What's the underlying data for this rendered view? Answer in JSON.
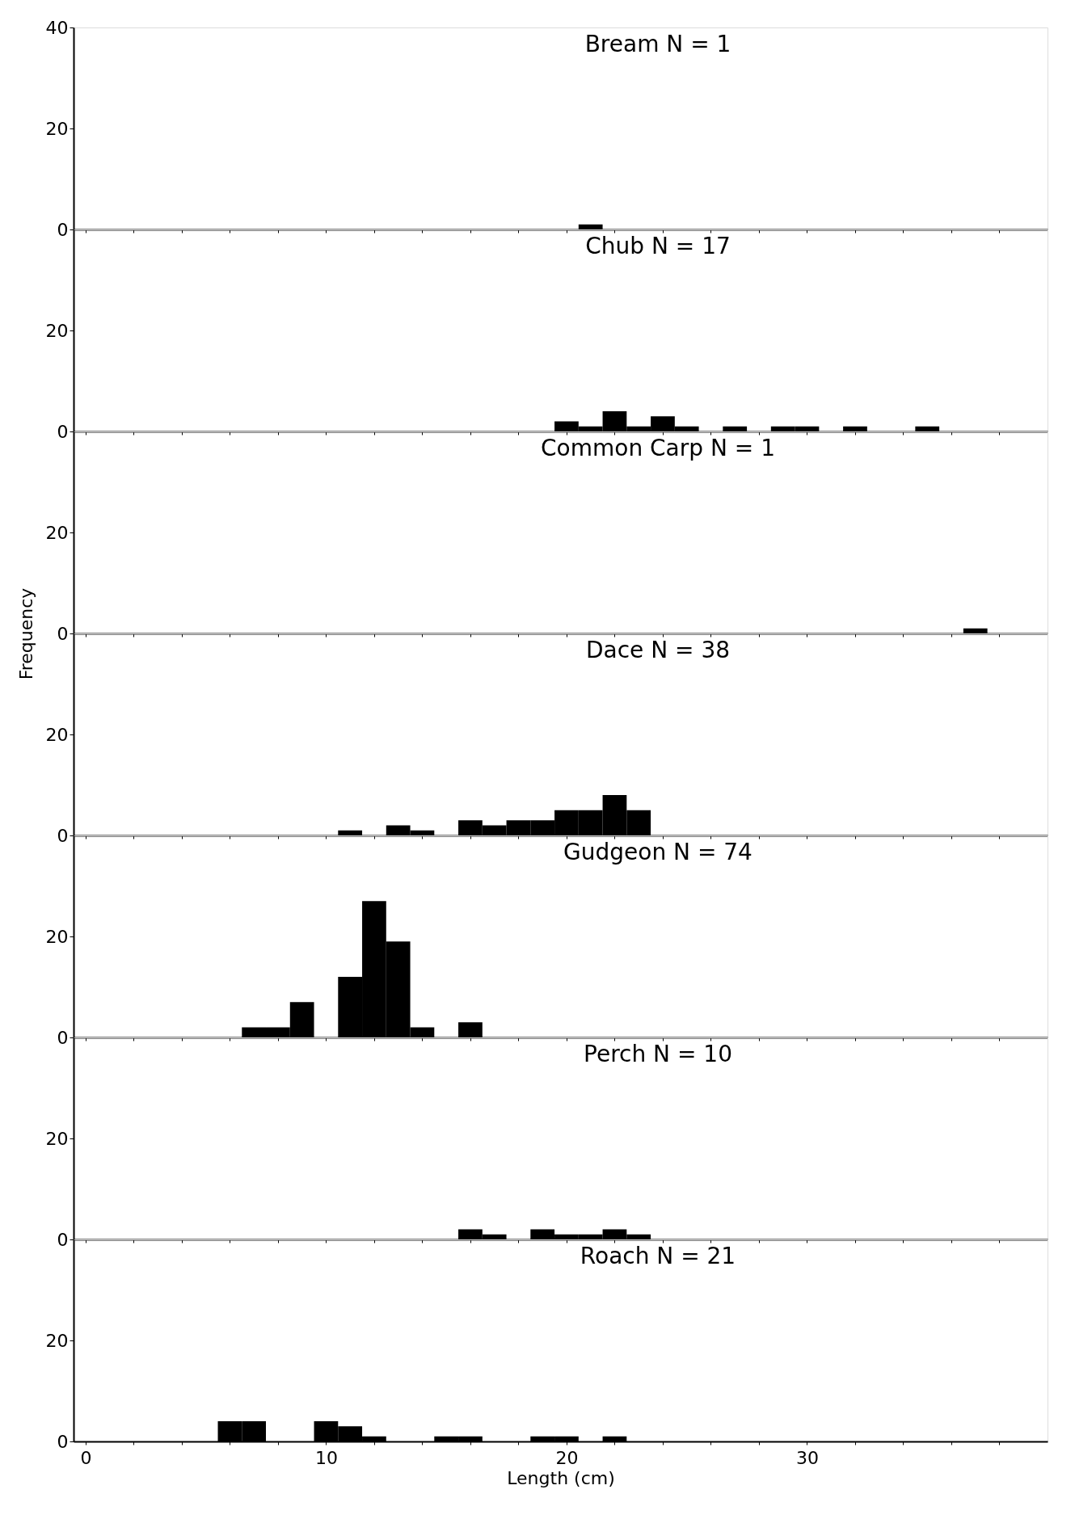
{
  "chart_data": [
    {
      "type": "histogram",
      "title": "Bream N = 1",
      "bins": [
        20.5,
        21.5
      ],
      "values": [
        1
      ],
      "color": "#000000",
      "xlim": [
        -0.5,
        40
      ],
      "ylim": [
        0,
        40
      ],
      "yticks": [
        0,
        20,
        40
      ],
      "tick_labels": "y",
      "xticks": [
        0,
        {
          "value": 2,
          "label": null
        },
        {
          "value": 4,
          "label": null
        },
        {
          "value": 6,
          "label": null
        },
        {
          "value": 8,
          "label": null
        },
        10,
        {
          "value": 12,
          "label": null
        },
        {
          "value": 14,
          "label": null
        },
        {
          "value": 16,
          "label": null
        },
        {
          "value": 18,
          "label": null
        },
        20,
        {
          "value": 22,
          "label": null
        },
        {
          "value": 24,
          "label": null
        },
        {
          "value": 26,
          "label": null
        },
        {
          "value": 28,
          "label": null
        },
        30,
        {
          "value": 32,
          "label": null
        },
        {
          "value": 34,
          "label": null
        },
        {
          "value": 36,
          "label": null
        },
        {
          "value": 38,
          "label": null
        }
      ]
    },
    {
      "type": "histogram",
      "title": "Chub N = 17",
      "bins": [
        19.5,
        20.5,
        21.5,
        22.5,
        23.5,
        24.5,
        25.5,
        26.5,
        27.5,
        28.5,
        29.5,
        30.5,
        31.5,
        32.5,
        33.5,
        34.5,
        35.5
      ],
      "values": [
        2,
        1,
        4,
        1,
        3,
        1,
        0,
        1,
        0,
        1,
        1,
        0,
        1,
        0,
        0,
        1
      ],
      "color": "#000000",
      "xlim": [
        -0.5,
        40
      ],
      "ylim": [
        0,
        40
      ],
      "yticks": [
        0,
        20
      ],
      "tick_labels": "y",
      "xticks": [
        0,
        {
          "value": 2,
          "label": null
        },
        {
          "value": 4,
          "label": null
        },
        {
          "value": 6,
          "label": null
        },
        {
          "value": 8,
          "label": null
        },
        10,
        {
          "value": 12,
          "label": null
        },
        {
          "value": 14,
          "label": null
        },
        {
          "value": 16,
          "label": null
        },
        {
          "value": 18,
          "label": null
        },
        20,
        {
          "value": 22,
          "label": null
        },
        {
          "value": 24,
          "label": null
        },
        {
          "value": 26,
          "label": null
        },
        {
          "value": 28,
          "label": null
        },
        30,
        {
          "value": 32,
          "label": null
        },
        {
          "value": 34,
          "label": null
        },
        {
          "value": 36,
          "label": null
        },
        {
          "value": 38,
          "label": null
        }
      ]
    },
    {
      "type": "histogram",
      "title": "Common Carp N = 1",
      "bins": [
        36.5,
        37.5
      ],
      "values": [
        1
      ],
      "color": "#000000",
      "xlim": [
        -0.5,
        40
      ],
      "ylim": [
        0,
        40
      ],
      "yticks": [
        0,
        20
      ],
      "tick_labels": "y",
      "xticks": [
        0,
        {
          "value": 2,
          "label": null
        },
        {
          "value": 4,
          "label": null
        },
        {
          "value": 6,
          "label": null
        },
        {
          "value": 8,
          "label": null
        },
        10,
        {
          "value": 12,
          "label": null
        },
        {
          "value": 14,
          "label": null
        },
        {
          "value": 16,
          "label": null
        },
        {
          "value": 18,
          "label": null
        },
        20,
        {
          "value": 22,
          "label": null
        },
        {
          "value": 24,
          "label": null
        },
        {
          "value": 26,
          "label": null
        },
        {
          "value": 28,
          "label": null
        },
        30,
        {
          "value": 32,
          "label": null
        },
        {
          "value": 34,
          "label": null
        },
        {
          "value": 36,
          "label": null
        },
        {
          "value": 38,
          "label": null
        }
      ]
    },
    {
      "type": "histogram",
      "title": "Dace N = 38",
      "ylabel": "Frequency",
      "bins": [
        10.5,
        11.5,
        12.5,
        13.5,
        14.5,
        15.5,
        16.5,
        17.5,
        18.5,
        19.5,
        20.5,
        21.5,
        22.5,
        23.5
      ],
      "values": [
        1,
        0,
        2,
        1,
        0,
        3,
        2,
        3,
        3,
        5,
        5,
        8,
        5
      ],
      "color": "#000000",
      "xlim": [
        -0.5,
        40
      ],
      "ylim": [
        0,
        40
      ],
      "yticks": [
        0,
        20
      ],
      "tick_labels": "y",
      "xticks": [
        0,
        {
          "value": 2,
          "label": null
        },
        {
          "value": 4,
          "label": null
        },
        {
          "value": 6,
          "label": null
        },
        {
          "value": 8,
          "label": null
        },
        10,
        {
          "value": 12,
          "label": null
        },
        {
          "value": 14,
          "label": null
        },
        {
          "value": 16,
          "label": null
        },
        {
          "value": 18,
          "label": null
        },
        20,
        {
          "value": 22,
          "label": null
        },
        {
          "value": 24,
          "label": null
        },
        {
          "value": 26,
          "label": null
        },
        {
          "value": 28,
          "label": null
        },
        30,
        {
          "value": 32,
          "label": null
        },
        {
          "value": 34,
          "label": null
        },
        {
          "value": 36,
          "label": null
        },
        {
          "value": 38,
          "label": null
        }
      ]
    },
    {
      "type": "histogram",
      "title": "Gudgeon N = 74",
      "bins": [
        6.5,
        7.5,
        8.5,
        9.5,
        10.5,
        11.5,
        12.5,
        13.5,
        14.5,
        15.5,
        16.5
      ],
      "values": [
        2,
        2,
        7,
        0,
        12,
        27,
        19,
        2,
        0,
        3
      ],
      "color": "#000000",
      "xlim": [
        -0.5,
        40
      ],
      "ylim": [
        0,
        40
      ],
      "yticks": [
        0,
        20
      ],
      "tick_labels": "y",
      "xticks": [
        0,
        {
          "value": 2,
          "label": null
        },
        {
          "value": 4,
          "label": null
        },
        {
          "value": 6,
          "label": null
        },
        {
          "value": 8,
          "label": null
        },
        10,
        {
          "value": 12,
          "label": null
        },
        {
          "value": 14,
          "label": null
        },
        {
          "value": 16,
          "label": null
        },
        {
          "value": 18,
          "label": null
        },
        20,
        {
          "value": 22,
          "label": null
        },
        {
          "value": 24,
          "label": null
        },
        {
          "value": 26,
          "label": null
        },
        {
          "value": 28,
          "label": null
        },
        30,
        {
          "value": 32,
          "label": null
        },
        {
          "value": 34,
          "label": null
        },
        {
          "value": 36,
          "label": null
        },
        {
          "value": 38,
          "label": null
        }
      ]
    },
    {
      "type": "histogram",
      "title": "Perch N = 10",
      "bins": [
        15.5,
        16.5,
        17.5,
        18.5,
        19.5,
        20.5,
        21.5,
        22.5,
        23.5
      ],
      "values": [
        2,
        1,
        0,
        2,
        1,
        1,
        2,
        1
      ],
      "color": "#000000",
      "xlim": [
        -0.5,
        40
      ],
      "ylim": [
        0,
        40
      ],
      "yticks": [
        0,
        20
      ],
      "tick_labels": "y",
      "xticks": [
        0,
        {
          "value": 2,
          "label": null
        },
        {
          "value": 4,
          "label": null
        },
        {
          "value": 6,
          "label": null
        },
        {
          "value": 8,
          "label": null
        },
        10,
        {
          "value": 12,
          "label": null
        },
        {
          "value": 14,
          "label": null
        },
        {
          "value": 16,
          "label": null
        },
        {
          "value": 18,
          "label": null
        },
        20,
        {
          "value": 22,
          "label": null
        },
        {
          "value": 24,
          "label": null
        },
        {
          "value": 26,
          "label": null
        },
        {
          "value": 28,
          "label": null
        },
        30,
        {
          "value": 32,
          "label": null
        },
        {
          "value": 34,
          "label": null
        },
        {
          "value": 36,
          "label": null
        },
        {
          "value": 38,
          "label": null
        }
      ]
    },
    {
      "type": "histogram",
      "title": "Roach N = 21",
      "xlabel": "Length (cm)",
      "bins": [
        5.5,
        6.5,
        7.5,
        8.5,
        9.5,
        10.5,
        11.5,
        12.5,
        13.5,
        14.5,
        15.5,
        16.5,
        17.5,
        18.5,
        19.5,
        20.5,
        21.5,
        22.5
      ],
      "values": [
        4,
        4,
        0,
        0,
        4,
        3,
        1,
        0,
        0,
        1,
        1,
        0,
        0,
        1,
        1,
        0,
        1
      ],
      "color": "#000000",
      "xlim": [
        -0.5,
        40
      ],
      "ylim": [
        0,
        40
      ],
      "yticks": [
        0,
        20
      ],
      "xticks": [
        0,
        {
          "value": 2,
          "label": null
        },
        {
          "value": 4,
          "label": null
        },
        {
          "value": 6,
          "label": null
        },
        {
          "value": 8,
          "label": null
        },
        10,
        {
          "value": 12,
          "label": null
        },
        {
          "value": 14,
          "label": null
        },
        {
          "value": 16,
          "label": null
        },
        {
          "value": 18,
          "label": null
        },
        20,
        {
          "value": 22,
          "label": null
        },
        {
          "value": 24,
          "label": null
        },
        {
          "value": 26,
          "label": null
        },
        {
          "value": 28,
          "label": null
        },
        30,
        {
          "value": 32,
          "label": null
        },
        {
          "value": 34,
          "label": null
        },
        {
          "value": 36,
          "label": null
        },
        {
          "value": 38,
          "label": null
        }
      ]
    }
  ]
}
